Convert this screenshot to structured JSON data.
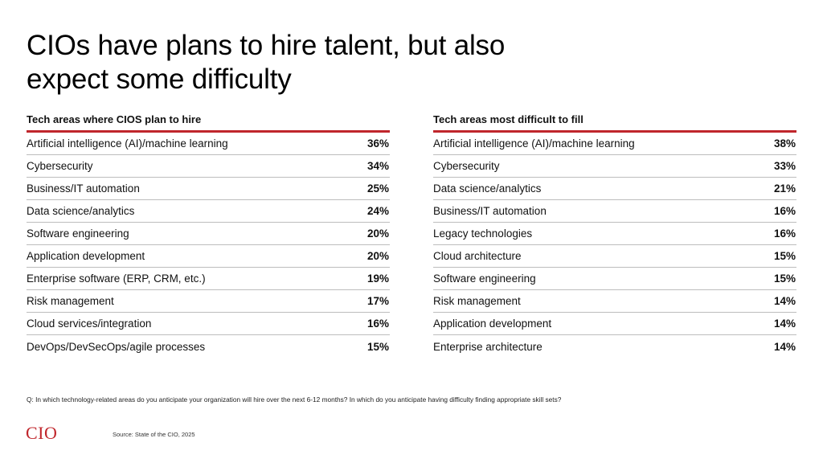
{
  "title_line1": "CIOs have plans to hire talent, but also",
  "title_line2": "expect some difficulty",
  "left_panel": {
    "heading": "Tech areas where CIOS plan to hire",
    "rows": [
      {
        "label": "Artificial intelligence (AI)/machine learning",
        "value": "36%"
      },
      {
        "label": "Cybersecurity",
        "value": "34%"
      },
      {
        "label": "Business/IT automation",
        "value": "25%"
      },
      {
        "label": "Data science/analytics",
        "value": "24%"
      },
      {
        "label": "Software engineering",
        "value": "20%"
      },
      {
        "label": "Application development",
        "value": "20%"
      },
      {
        "label": "Enterprise software (ERP, CRM, etc.)",
        "value": "19%"
      },
      {
        "label": "Risk management",
        "value": "17%"
      },
      {
        "label": "Cloud services/integration",
        "value": "16%"
      },
      {
        "label": "DevOps/DevSecOps/agile processes",
        "value": "15%"
      }
    ]
  },
  "right_panel": {
    "heading": "Tech areas most difficult to fill",
    "rows": [
      {
        "label": "Artificial intelligence (AI)/machine learning",
        "value": "38%"
      },
      {
        "label": "Cybersecurity",
        "value": "33%"
      },
      {
        "label": "Data science/analytics",
        "value": "21%"
      },
      {
        "label": "Business/IT automation",
        "value": "16%"
      },
      {
        "label": "Legacy technologies",
        "value": "16%"
      },
      {
        "label": "Cloud architecture",
        "value": "15%"
      },
      {
        "label": "Software engineering",
        "value": "15%"
      },
      {
        "label": "Risk management",
        "value": "14%"
      },
      {
        "label": "Application development",
        "value": "14%"
      },
      {
        "label": "Enterprise architecture",
        "value": "14%"
      }
    ]
  },
  "question": "Q: In which technology-related areas do you anticipate your organization will hire over the next 6-12 months?  In which do you anticipate having difficulty finding appropriate skill sets?",
  "logo_text": "CIO",
  "source": "Source: State of the CIO, 2025",
  "colors": {
    "accent": "#c0262c",
    "divider": "#bdbdbd"
  }
}
